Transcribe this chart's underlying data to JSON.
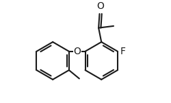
{
  "bg_color": "#ffffff",
  "line_color": "#1a1a1a",
  "line_width": 1.5,
  "font_size": 9,
  "fig_width": 2.5,
  "fig_height": 1.5,
  "dpi": 100,
  "xlim": [
    -2.0,
    4.5
  ],
  "ylim": [
    -2.2,
    2.8
  ]
}
